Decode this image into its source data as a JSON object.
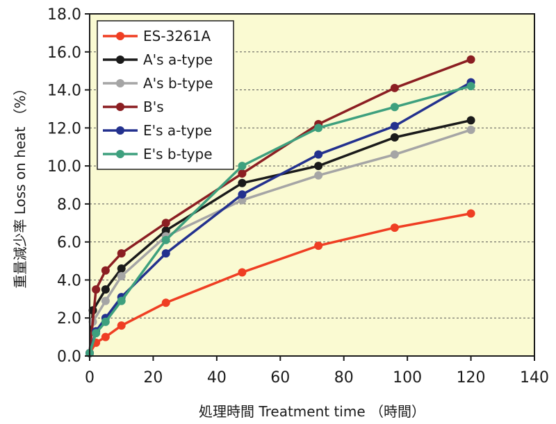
{
  "chart_data": {
    "type": "line",
    "title": "",
    "xlabel": "処理時間 Treatment time （時間）",
    "ylabel": "重量減少率 Loss on heat （%）",
    "xlim": [
      0,
      140
    ],
    "ylim": [
      0,
      18
    ],
    "xticks": [
      "0",
      "20",
      "40",
      "60",
      "80",
      "100",
      "120",
      "140"
    ],
    "yticks": [
      "0.0",
      "2.0",
      "4.0",
      "6.0",
      "8.0",
      "10.0",
      "12.0",
      "14.0",
      "16.0",
      "18.0"
    ],
    "grid": "horizontal dashed",
    "legend_position": "top-left",
    "plot_background": "#fafad2",
    "series": [
      {
        "name": "ES-3261A",
        "color": "#ef3e23",
        "x": [
          0,
          2,
          5,
          10,
          24,
          48,
          72,
          96,
          120
        ],
        "y": [
          0.15,
          0.7,
          1.0,
          1.6,
          2.8,
          4.4,
          5.8,
          6.75,
          7.5
        ]
      },
      {
        "name": "A's a-type",
        "color": "#1a1a1a",
        "x": [
          0,
          1,
          5,
          10,
          24,
          48,
          72,
          96,
          120
        ],
        "y": [
          0.15,
          2.4,
          3.5,
          4.6,
          6.6,
          9.1,
          10.0,
          11.5,
          12.4
        ]
      },
      {
        "name": "A's b-type",
        "color": "#a5a5a5",
        "x": [
          0,
          1,
          5,
          10,
          24,
          48,
          72,
          96,
          120
        ],
        "y": [
          0.15,
          1.8,
          2.9,
          4.2,
          6.3,
          8.2,
          9.5,
          10.6,
          11.9
        ]
      },
      {
        "name": "B's",
        "color": "#8b1e22",
        "x": [
          0,
          2,
          5,
          10,
          24,
          48,
          72,
          96,
          120
        ],
        "y": [
          0.15,
          3.5,
          4.5,
          5.4,
          7.0,
          9.6,
          12.2,
          14.1,
          15.6
        ]
      },
      {
        "name": "E's a-type",
        "color": "#23318e",
        "x": [
          0,
          2,
          5,
          10,
          24,
          48,
          72,
          96,
          120
        ],
        "y": [
          0.15,
          1.3,
          2.0,
          3.1,
          5.4,
          8.5,
          10.6,
          12.1,
          14.4
        ]
      },
      {
        "name": "E's b-type",
        "color": "#3ea07e",
        "x": [
          0,
          2,
          5,
          10,
          24,
          48,
          72,
          96,
          120
        ],
        "y": [
          0.15,
          1.2,
          1.8,
          2.9,
          6.1,
          10.0,
          12.0,
          13.1,
          14.2
        ]
      }
    ]
  }
}
